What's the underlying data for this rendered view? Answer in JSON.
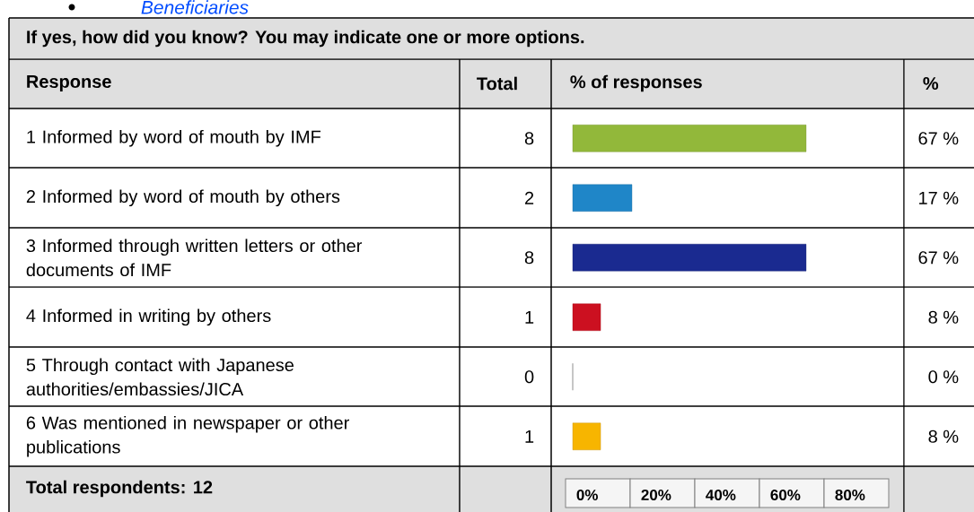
{
  "chart_data": {
    "type": "bar",
    "orientation": "horizontal",
    "subtitle": "Beneficiaries",
    "title": "If yes, how did you know? You may indicate one or more options.",
    "ylabel": "Response",
    "xlabel": "% of responses",
    "categories": [
      "1 Informed by word of mouth by IMF",
      "2 Informed by word of mouth by others",
      "3 Informed through written letters or other documents of IMF",
      "4 Informed in writing by others",
      "5 Through contact with Japanese authorities/embassies/JICA",
      "6 Was mentioned in newspaper or other publications"
    ],
    "values": [
      67,
      17,
      67,
      8,
      0,
      8
    ],
    "colors": [
      "#92b83a",
      "#1f86c8",
      "#1a2a90",
      "#cc1020",
      null,
      "#f7b500"
    ],
    "value_labels": [
      "67 %",
      "17 %",
      "67 %",
      "8 %",
      "0 %",
      "8 %"
    ],
    "annotations": [
      "Total",
      "%",
      "Total respondents: 12",
      "8",
      "2",
      "8",
      "1",
      "0",
      "1",
      "0%",
      "20%",
      "40%",
      "60%",
      "80%"
    ]
  }
}
